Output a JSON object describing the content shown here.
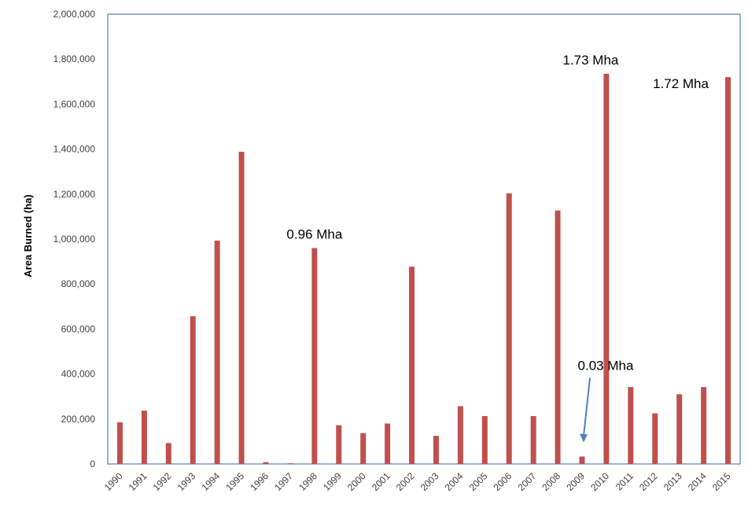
{
  "chart_data": {
    "type": "bar",
    "title": "",
    "xlabel": "",
    "ylabel": "Area Burned (ha)",
    "ylim": [
      0,
      2000000
    ],
    "yticks": [
      0,
      200000,
      400000,
      600000,
      800000,
      1000000,
      1200000,
      1400000,
      1600000,
      1800000,
      2000000
    ],
    "ytick_labels": [
      "0",
      "200,000",
      "400,000",
      "600,000",
      "800,000",
      "1,000,000",
      "1,200,000",
      "1,400,000",
      "1,600,000",
      "1,800,000",
      "2,000,000"
    ],
    "categories": [
      "1990",
      "1991",
      "1992",
      "1993",
      "1994",
      "1995",
      "1996",
      "1997",
      "1998",
      "1999",
      "2000",
      "2001",
      "2002",
      "2003",
      "2004",
      "2005",
      "2006",
      "2007",
      "2008",
      "2009",
      "2010",
      "2011",
      "2012",
      "2013",
      "2014",
      "2015"
    ],
    "values": [
      185000,
      237000,
      93000,
      657000,
      993000,
      1388000,
      8000,
      3000,
      960000,
      172000,
      137000,
      180000,
      877000,
      125000,
      257000,
      213000,
      1203000,
      213000,
      1127000,
      33000,
      1735000,
      342000,
      225000,
      310000,
      342000,
      1720000
    ],
    "bar_color": "#c0504d",
    "border_color": "#4f81bd",
    "grid": false,
    "annotations": [
      {
        "text": "0.96 Mha",
        "category": "1998"
      },
      {
        "text": "1.73 Mha",
        "category": "2010"
      },
      {
        "text": "1.72 Mha",
        "category": "2015"
      },
      {
        "text": "0.03 Mha",
        "category": "2009",
        "arrow": true,
        "arrow_color": "#4f81bd"
      }
    ]
  }
}
